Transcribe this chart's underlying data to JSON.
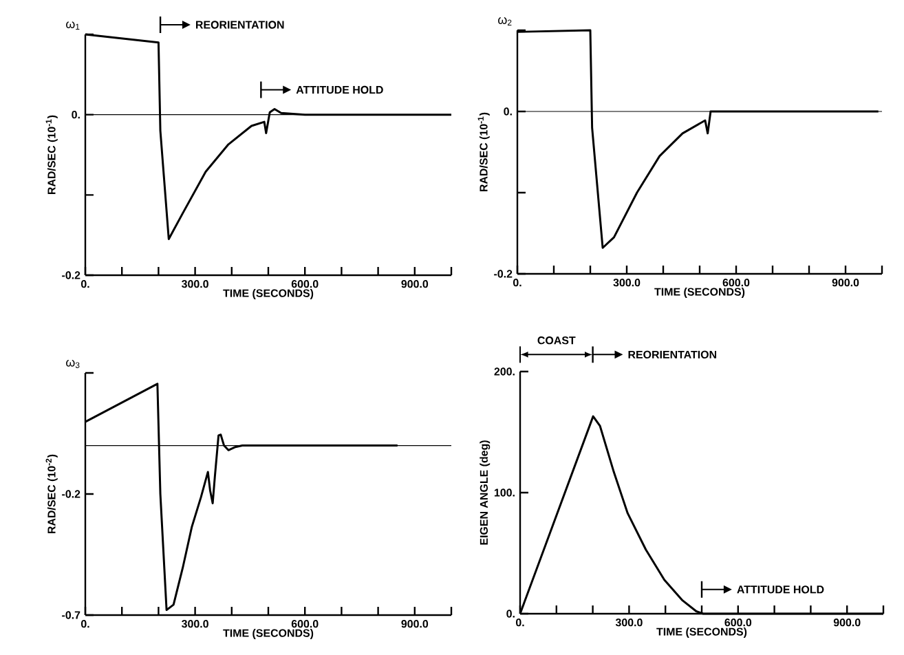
{
  "chart_data": [
    {
      "type": "line",
      "title": "ω$_{1}$",
      "xlabel": "TIME (SECONDS)",
      "ylabel": "RAD/SEC   (10$^{-1}$)",
      "x": [
        0,
        200,
        205,
        228,
        266,
        329,
        391,
        454,
        489,
        494,
        504,
        517,
        535,
        600,
        1000
      ],
      "values": [
        0.1,
        0.09,
        -0.02,
        -0.155,
        -0.123,
        -0.071,
        -0.037,
        -0.014,
        -0.009,
        -0.023,
        0.003,
        0.007,
        0.002,
        0,
        0
      ],
      "color": "#000000",
      "xlim": [
        0,
        1000
      ],
      "ylim": [
        -0.2,
        0.1
      ],
      "xticks": [
        {
          "value": 0,
          "label": "0."
        },
        {
          "value": 100,
          "label": null
        },
        {
          "value": 200,
          "label": null
        },
        {
          "value": 300,
          "label": "300.0"
        },
        {
          "value": 400,
          "label": null
        },
        {
          "value": 500,
          "label": null
        },
        {
          "value": 600,
          "label": "600.0"
        },
        {
          "value": 700,
          "label": null
        },
        {
          "value": 800,
          "label": null
        },
        {
          "value": 900,
          "label": "900.0"
        },
        {
          "value": 1000,
          "label": null
        }
      ],
      "yticks": [
        {
          "value": -0.2,
          "label": "-0.2"
        },
        {
          "value": -0.1,
          "label": null
        },
        {
          "value": 0,
          "label": "0."
        },
        {
          "value": 0.1,
          "label": null
        }
      ],
      "ref_lines": [
        {
          "axis": "y",
          "value": 0
        }
      ],
      "annotations": [
        "REORIENTATION",
        "ATTITUDE HOLD"
      ]
    },
    {
      "type": "line",
      "title": "ω$_{2}$",
      "xlabel": "TIME (SECONDS)",
      "ylabel": "RAD/SEC   (10$^{-1}$)",
      "x": [
        0,
        200,
        205,
        234,
        265,
        328,
        390,
        453,
        515,
        522,
        530,
        600,
        990
      ],
      "values": [
        0.098,
        0.1,
        -0.02,
        -0.168,
        -0.155,
        -0.1,
        -0.055,
        -0.027,
        -0.011,
        -0.027,
        0,
        0,
        0
      ],
      "color": "#000000",
      "xlim": [
        0,
        1000
      ],
      "ylim": [
        -0.2,
        0.1
      ],
      "xticks": [
        {
          "value": 0,
          "label": "0."
        },
        {
          "value": 100,
          "label": null
        },
        {
          "value": 200,
          "label": null
        },
        {
          "value": 300,
          "label": "300.0"
        },
        {
          "value": 400,
          "label": null
        },
        {
          "value": 500,
          "label": null
        },
        {
          "value": 600,
          "label": "600.0"
        },
        {
          "value": 700,
          "label": null
        },
        {
          "value": 800,
          "label": null
        },
        {
          "value": 900,
          "label": "900.0"
        },
        {
          "value": 1000,
          "label": null
        }
      ],
      "yticks": [
        {
          "value": -0.2,
          "label": "-0.2"
        },
        {
          "value": -0.1,
          "label": null
        },
        {
          "value": 0,
          "label": "0."
        },
        {
          "value": 0.1,
          "label": null
        }
      ],
      "ref_lines": [
        {
          "axis": "y",
          "value": 0
        }
      ]
    },
    {
      "type": "line",
      "title": "ω$_{3}$",
      "xlabel": "TIME (SECONDS)",
      "ylabel": "RAD/SEC   (10$^{-2}$)",
      "x": [
        0,
        197,
        205,
        222,
        241,
        266,
        291,
        316,
        335,
        341,
        348,
        354,
        364,
        370,
        379,
        391,
        410,
        429,
        853
      ],
      "values": [
        0.098,
        0.255,
        -0.2,
        -0.679,
        -0.657,
        -0.506,
        -0.336,
        -0.213,
        -0.109,
        -0.185,
        -0.238,
        -0.128,
        0.042,
        0.045,
        0,
        -0.019,
        -0.006,
        0,
        0
      ],
      "color": "#000000",
      "xlim": [
        0,
        1000
      ],
      "ylim": [
        -0.7,
        0.3
      ],
      "xticks": [
        {
          "value": 0,
          "label": "0."
        },
        {
          "value": 100,
          "label": null
        },
        {
          "value": 200,
          "label": null
        },
        {
          "value": 300,
          "label": "300.0"
        },
        {
          "value": 400,
          "label": null
        },
        {
          "value": 500,
          "label": null
        },
        {
          "value": 600,
          "label": "600.0"
        },
        {
          "value": 700,
          "label": null
        },
        {
          "value": 800,
          "label": null
        },
        {
          "value": 900,
          "label": "900.0"
        },
        {
          "value": 1000,
          "label": null
        }
      ],
      "yticks": [
        {
          "value": -0.7,
          "label": "-0.7"
        },
        {
          "value": -0.2,
          "label": "-0.2"
        },
        {
          "value": 0.3,
          "label": null
        }
      ],
      "ref_lines": [
        {
          "axis": "y",
          "value": 0
        }
      ]
    },
    {
      "type": "line",
      "xlabel": "TIME (SECONDS)",
      "ylabel": "EIGEN ANGLE (deg)",
      "x": [
        0,
        201,
        220,
        258,
        296,
        346,
        397,
        447,
        485,
        504,
        1000
      ],
      "values": [
        0,
        163,
        155,
        117,
        83,
        53,
        28,
        11,
        2,
        0,
        0
      ],
      "color": "#000000",
      "xlim": [
        0,
        1000
      ],
      "ylim": [
        0,
        200
      ],
      "xticks": [
        {
          "value": 0,
          "label": "0."
        },
        {
          "value": 100,
          "label": null
        },
        {
          "value": 200,
          "label": null
        },
        {
          "value": 300,
          "label": "300.0"
        },
        {
          "value": 400,
          "label": null
        },
        {
          "value": 500,
          "label": null
        },
        {
          "value": 600,
          "label": "600.0"
        },
        {
          "value": 700,
          "label": null
        },
        {
          "value": 800,
          "label": null
        },
        {
          "value": 900,
          "label": "900.0"
        },
        {
          "value": 1000,
          "label": null
        }
      ],
      "yticks": [
        {
          "value": 0,
          "label": "0."
        },
        {
          "value": 100,
          "label": "100."
        },
        {
          "value": 200,
          "label": "200."
        }
      ],
      "annotations": [
        "COAST",
        "REORIENTATION",
        "ATTITUDE HOLD"
      ]
    }
  ]
}
